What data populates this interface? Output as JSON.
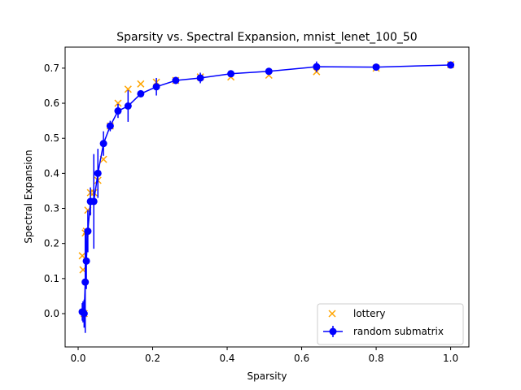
{
  "chart_data": {
    "type": "scatter",
    "title": "Sparsity vs. Spectral Expansion, mnist_lenet_100_50",
    "xlabel": "Sparsity",
    "ylabel": "Spectral Expansion",
    "xlim": [
      -0.035,
      1.049
    ],
    "ylim": [
      -0.095,
      0.76
    ],
    "xticks": [
      0.0,
      0.2,
      0.4,
      0.6,
      0.8,
      1.0
    ],
    "xtick_labels": [
      "0.0",
      "0.2",
      "0.4",
      "0.6",
      "0.8",
      "1.0"
    ],
    "yticks": [
      0.0,
      0.1,
      0.2,
      0.3,
      0.4,
      0.5,
      0.6,
      0.7
    ],
    "ytick_labels": [
      "0.0",
      "0.1",
      "0.2",
      "0.3",
      "0.4",
      "0.5",
      "0.6",
      "0.7"
    ],
    "legend_position": "lower right",
    "grid": false,
    "series": [
      {
        "name": "lottery",
        "kind": "scatter",
        "marker": "x",
        "color": "#ffa500",
        "x": [
          0.011,
          0.013,
          0.016,
          0.019,
          0.022,
          0.026,
          0.033,
          0.042,
          0.053,
          0.068,
          0.086,
          0.107,
          0.134,
          0.168,
          0.21,
          0.262,
          0.328,
          0.41,
          0.512,
          0.64,
          0.8,
          1.0
        ],
        "y": [
          0.165,
          0.125,
          0.0,
          0.23,
          0.235,
          0.295,
          0.345,
          0.345,
          0.38,
          0.44,
          0.535,
          0.6,
          0.64,
          0.655,
          0.66,
          0.665,
          0.675,
          0.675,
          0.68,
          0.69,
          0.7,
          0.71
        ]
      },
      {
        "name": "random submatrix",
        "kind": "errorbar",
        "marker": "o",
        "color": "#0000ff",
        "x": [
          0.011,
          0.013,
          0.016,
          0.019,
          0.022,
          0.026,
          0.033,
          0.042,
          0.053,
          0.068,
          0.086,
          0.107,
          0.134,
          0.168,
          0.21,
          0.262,
          0.328,
          0.41,
          0.512,
          0.64,
          0.8,
          1.0
        ],
        "y": [
          0.005,
          0.005,
          0.0,
          0.09,
          0.15,
          0.235,
          0.32,
          0.32,
          0.4,
          0.485,
          0.535,
          0.578,
          0.592,
          0.627,
          0.647,
          0.665,
          0.672,
          0.684,
          0.691,
          0.704,
          0.703,
          0.709
        ],
        "yerr": [
          0.025,
          0.03,
          0.04,
          0.145,
          0.08,
          0.06,
          0.04,
          0.135,
          0.07,
          0.035,
          0.015,
          0.02,
          0.045,
          0.01,
          0.025,
          0.01,
          0.015,
          0.008,
          0.008,
          0.015,
          0.008,
          0.006
        ]
      }
    ]
  }
}
